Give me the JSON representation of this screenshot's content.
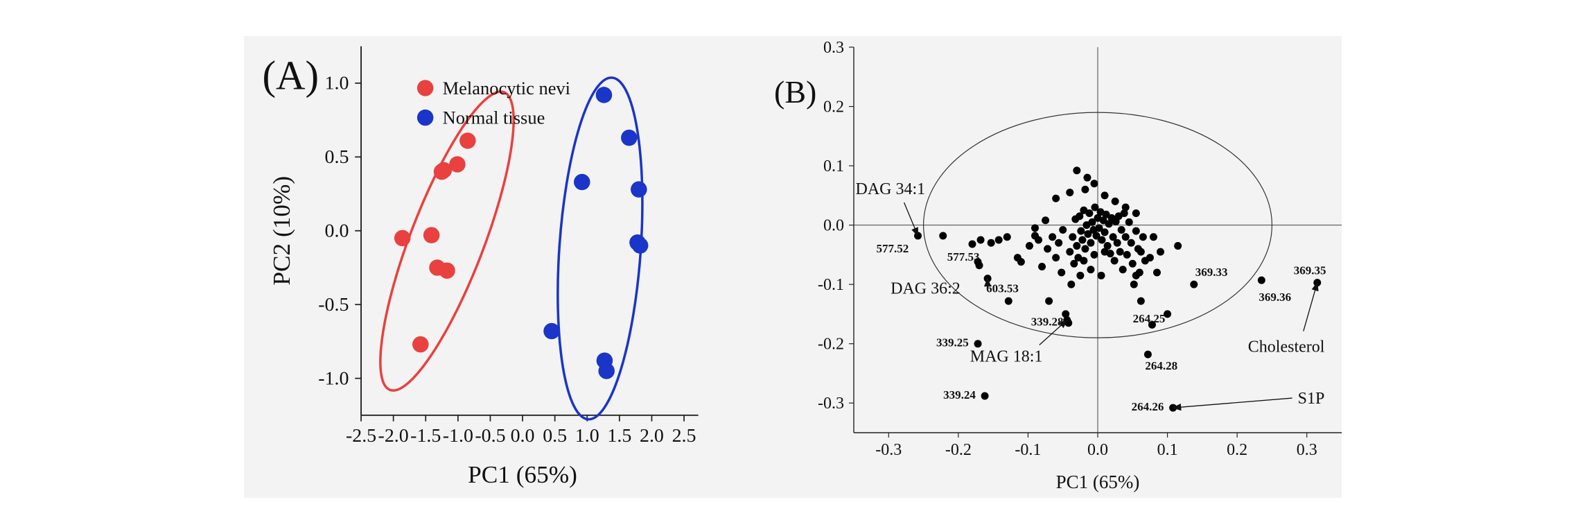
{
  "panels": [
    {
      "panel_label": "(A)",
      "chart_data": {
        "type": "scatter",
        "xlabel": "PC1 (65%)",
        "ylabel": "PC2 (10%)",
        "xlim": [
          -2.5,
          2.5
        ],
        "ylim": [
          -1.25,
          1.25
        ],
        "xticks": [
          -2.5,
          -2.0,
          -1.5,
          -1.0,
          -0.5,
          0.0,
          0.5,
          1.0,
          1.5,
          2.0,
          2.5
        ],
        "yticks": [
          -1.0,
          -0.5,
          0.0,
          0.5,
          1.0
        ],
        "xtick_labels": [
          "-2.5",
          "-2.0",
          "-1.5",
          "-1.0",
          "-0.5",
          "0.0",
          "0.5",
          "1.0",
          "1.5",
          "2.0",
          "2.5"
        ],
        "ytick_labels": [
          "-1.0",
          "-0.5",
          "0.0",
          "0.5",
          "1.0"
        ],
        "legend_position": "top-left",
        "series": [
          {
            "name": "Melanocytic nevi",
            "color": "#e8413f",
            "points": [
              {
                "x": -0.85,
                "y": 0.61
              },
              {
                "x": -1.01,
                "y": 0.45
              },
              {
                "x": -1.22,
                "y": 0.41
              },
              {
                "x": -1.25,
                "y": 0.4
              },
              {
                "x": -1.41,
                "y": -0.03
              },
              {
                "x": -1.86,
                "y": -0.05
              },
              {
                "x": -1.32,
                "y": -0.25
              },
              {
                "x": -1.17,
                "y": -0.27
              },
              {
                "x": -1.58,
                "y": -0.77
              }
            ],
            "ellipse": {
              "cx": -1.17,
              "cy": -0.07,
              "rx": 0.57,
              "ry": 1.08,
              "angle_deg": -21
            }
          },
          {
            "name": "Normal tissue",
            "color": "#1a35c8",
            "points": [
              {
                "x": 1.26,
                "y": 0.92
              },
              {
                "x": 1.65,
                "y": 0.63
              },
              {
                "x": 0.92,
                "y": 0.33
              },
              {
                "x": 1.8,
                "y": 0.28
              },
              {
                "x": 1.78,
                "y": -0.08
              },
              {
                "x": 1.82,
                "y": -0.1
              },
              {
                "x": 0.45,
                "y": -0.68
              },
              {
                "x": 1.27,
                "y": -0.88
              },
              {
                "x": 1.3,
                "y": -0.95
              }
            ],
            "ellipse": {
              "cx": 1.2,
              "cy": -0.12,
              "rx": 0.63,
              "ry": 1.16,
              "angle_deg": -4
            }
          }
        ]
      }
    },
    {
      "panel_label": "(B)",
      "chart_data": {
        "type": "scatter",
        "xlabel": "PC1 (65%)",
        "ylabel": "",
        "xlim": [
          -0.35,
          0.35
        ],
        "ylim": [
          -0.35,
          0.3
        ],
        "xticks": [
          -0.3,
          -0.2,
          -0.1,
          0.0,
          0.1,
          0.2,
          0.3
        ],
        "yticks": [
          -0.3,
          -0.2,
          -0.1,
          0.0,
          0.1,
          0.2,
          0.3
        ],
        "xtick_labels": [
          "-0.3",
          "-0.2",
          "-0.1",
          "0.0",
          "0.1",
          "0.2",
          "0.3"
        ],
        "ytick_labels": [
          "-0.3",
          "-0.2",
          "-0.1",
          "0.0",
          "0.1",
          "0.2",
          "0.3"
        ],
        "reference_ellipse": {
          "cx": 0.0,
          "cy": 0.0,
          "rx": 0.25,
          "ry": 0.19
        },
        "loadings": [
          {
            "x": -0.258,
            "y": -0.018
          },
          {
            "x": -0.222,
            "y": -0.018
          },
          {
            "x": -0.172,
            "y": -0.062
          },
          {
            "x": -0.17,
            "y": -0.068
          },
          {
            "x": -0.158,
            "y": -0.09
          },
          {
            "x": -0.18,
            "y": -0.032
          },
          {
            "x": -0.168,
            "y": -0.025
          },
          {
            "x": -0.153,
            "y": -0.03
          },
          {
            "x": -0.142,
            "y": -0.025
          },
          {
            "x": -0.13,
            "y": -0.02
          },
          {
            "x": -0.115,
            "y": -0.055
          },
          {
            "x": -0.11,
            "y": -0.062
          },
          {
            "x": -0.098,
            "y": -0.035
          },
          {
            "x": -0.09,
            "y": -0.018
          },
          {
            "x": -0.085,
            "y": -0.025
          },
          {
            "x": -0.08,
            "y": -0.07
          },
          {
            "x": -0.072,
            "y": -0.04
          },
          {
            "x": -0.07,
            "y": -0.128
          },
          {
            "x": -0.065,
            "y": -0.02
          },
          {
            "x": -0.06,
            "y": -0.055
          },
          {
            "x": -0.056,
            "y": -0.03
          },
          {
            "x": -0.052,
            "y": -0.08
          },
          {
            "x": -0.05,
            "y": -0.008
          },
          {
            "x": -0.046,
            "y": -0.15
          },
          {
            "x": -0.044,
            "y": -0.16
          },
          {
            "x": -0.042,
            "y": -0.165
          },
          {
            "x": -0.04,
            "y": -0.045
          },
          {
            "x": -0.038,
            "y": -0.1
          },
          {
            "x": -0.036,
            "y": -0.02
          },
          {
            "x": -0.034,
            "y": -0.065
          },
          {
            "x": -0.032,
            "y": 0.01
          },
          {
            "x": -0.03,
            "y": -0.035
          },
          {
            "x": -0.028,
            "y": -0.055
          },
          {
            "x": -0.026,
            "y": 0.015
          },
          {
            "x": -0.024,
            "y": -0.01
          },
          {
            "x": -0.022,
            "y": -0.025
          },
          {
            "x": -0.02,
            "y": 0.025
          },
          {
            "x": -0.018,
            "y": -0.04
          },
          {
            "x": -0.016,
            "y": 0.0
          },
          {
            "x": -0.014,
            "y": -0.015
          },
          {
            "x": -0.012,
            "y": 0.02
          },
          {
            "x": -0.01,
            "y": -0.03
          },
          {
            "x": -0.008,
            "y": 0.005
          },
          {
            "x": -0.006,
            "y": -0.008
          },
          {
            "x": -0.004,
            "y": 0.03
          },
          {
            "x": -0.002,
            "y": -0.018
          },
          {
            "x": 0.0,
            "y": 0.012
          },
          {
            "x": 0.002,
            "y": -0.005
          },
          {
            "x": 0.004,
            "y": 0.022
          },
          {
            "x": 0.006,
            "y": -0.025
          },
          {
            "x": 0.008,
            "y": 0.008
          },
          {
            "x": 0.01,
            "y": -0.012
          },
          {
            "x": 0.012,
            "y": 0.018
          },
          {
            "x": 0.014,
            "y": -0.035
          },
          {
            "x": 0.016,
            "y": 0.002
          },
          {
            "x": 0.018,
            "y": -0.048
          },
          {
            "x": 0.02,
            "y": 0.012
          },
          {
            "x": 0.022,
            "y": -0.02
          },
          {
            "x": 0.024,
            "y": -0.06
          },
          {
            "x": 0.026,
            "y": 0.006
          },
          {
            "x": 0.028,
            "y": -0.03
          },
          {
            "x": 0.03,
            "y": 0.015
          },
          {
            "x": 0.032,
            "y": -0.045
          },
          {
            "x": 0.034,
            "y": -0.008
          },
          {
            "x": 0.036,
            "y": -0.075
          },
          {
            "x": 0.038,
            "y": 0.02
          },
          {
            "x": 0.04,
            "y": -0.02
          },
          {
            "x": 0.042,
            "y": -0.05
          },
          {
            "x": 0.045,
            "y": 0.005
          },
          {
            "x": 0.048,
            "y": -0.03
          },
          {
            "x": 0.05,
            "y": -0.065
          },
          {
            "x": 0.052,
            "y": -0.1
          },
          {
            "x": 0.055,
            "y": -0.01
          },
          {
            "x": 0.058,
            "y": -0.04
          },
          {
            "x": 0.06,
            "y": -0.08
          },
          {
            "x": 0.062,
            "y": -0.045
          },
          {
            "x": 0.065,
            "y": -0.02
          },
          {
            "x": 0.068,
            "y": -0.06
          },
          {
            "x": -0.06,
            "y": 0.045
          },
          {
            "x": -0.04,
            "y": 0.055
          },
          {
            "x": -0.018,
            "y": 0.06
          },
          {
            "x": -0.005,
            "y": 0.07
          },
          {
            "x": 0.01,
            "y": 0.05
          },
          {
            "x": 0.025,
            "y": 0.04
          },
          {
            "x": 0.04,
            "y": 0.03
          },
          {
            "x": 0.055,
            "y": 0.02
          },
          {
            "x": -0.075,
            "y": 0.008
          },
          {
            "x": -0.09,
            "y": -0.005
          },
          {
            "x": -0.015,
            "y": 0.08
          },
          {
            "x": -0.03,
            "y": 0.092
          },
          {
            "x": -0.02,
            "y": -0.06
          },
          {
            "x": -0.005,
            "y": -0.05
          },
          {
            "x": 0.01,
            "y": -0.045
          },
          {
            "x": -0.01,
            "y": -0.075
          },
          {
            "x": 0.005,
            "y": -0.085
          },
          {
            "x": -0.025,
            "y": -0.085
          },
          {
            "x": 0.115,
            "y": -0.035
          },
          {
            "x": 0.138,
            "y": -0.1
          },
          {
            "x": 0.235,
            "y": -0.093
          },
          {
            "x": 0.315,
            "y": -0.097
          },
          {
            "x": 0.1,
            "y": -0.15
          },
          {
            "x": 0.078,
            "y": -0.168
          },
          {
            "x": 0.072,
            "y": -0.218
          },
          {
            "x": 0.108,
            "y": -0.308
          },
          {
            "x": -0.172,
            "y": -0.2
          },
          {
            "x": -0.162,
            "y": -0.288
          },
          {
            "x": -0.128,
            "y": -0.128
          },
          {
            "x": 0.062,
            "y": -0.128
          },
          {
            "x": 0.055,
            "y": -0.085
          },
          {
            "x": 0.085,
            "y": -0.08
          },
          {
            "x": 0.075,
            "y": -0.055
          },
          {
            "x": 0.08,
            "y": -0.02
          },
          {
            "x": 0.09,
            "y": -0.045
          }
        ],
        "point_labels": [
          {
            "text": "577.52",
            "x": -0.258,
            "y": -0.018
          },
          {
            "text": "577.53",
            "x": -0.222,
            "y": -0.018
          },
          {
            "text": "603.53",
            "x": -0.158,
            "y": -0.09
          },
          {
            "text": "339.28",
            "x": -0.044,
            "y": -0.16
          },
          {
            "text": "339.25",
            "x": -0.172,
            "y": -0.2
          },
          {
            "text": "339.24",
            "x": -0.162,
            "y": -0.288
          },
          {
            "text": "264.25",
            "x": 0.1,
            "y": -0.15
          },
          {
            "text": "264.28",
            "x": 0.072,
            "y": -0.218
          },
          {
            "text": "264.26",
            "x": 0.108,
            "y": -0.308
          },
          {
            "text": "369.33",
            "x": 0.138,
            "y": -0.1
          },
          {
            "text": "369.36",
            "x": 0.235,
            "y": -0.093
          },
          {
            "text": "369.35",
            "x": 0.315,
            "y": -0.097
          }
        ],
        "annotations": [
          {
            "text": "DAG 34:1",
            "target_x": -0.258,
            "target_y": -0.018
          },
          {
            "text": "DAG 36:2",
            "target_x": -0.158,
            "target_y": -0.09
          },
          {
            "text": "MAG 18:1",
            "target_x": -0.044,
            "target_y": -0.16
          },
          {
            "text": "S1P",
            "target_x": 0.108,
            "target_y": -0.308
          },
          {
            "text": "Cholesterol",
            "target_x": 0.315,
            "target_y": -0.097
          }
        ]
      }
    }
  ]
}
